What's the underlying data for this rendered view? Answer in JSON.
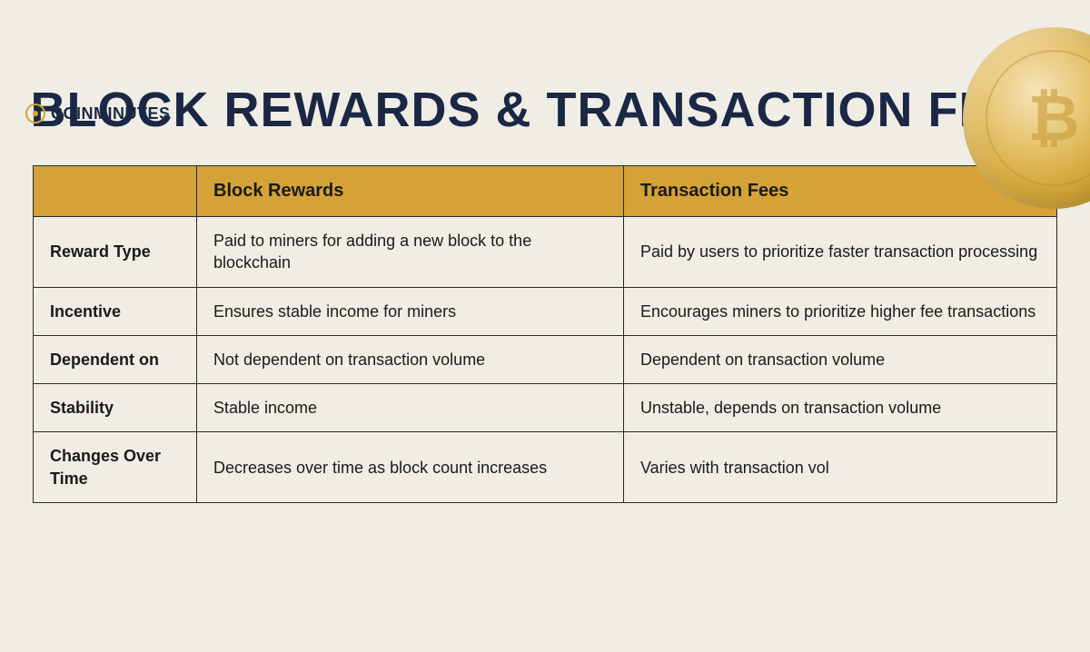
{
  "logo": {
    "prefix": "COIN",
    "suffix": "MINUTES"
  },
  "coin_symbol": "₿",
  "title": "BLOCK REWARDS & TRANSACTION FEES",
  "colors": {
    "background": "#f0ede5",
    "header_bg": "#d4a237",
    "title_color": "#1a2845",
    "border_color": "#2a2a2a",
    "logo_accent": "#d4a739"
  },
  "table": {
    "columns": [
      "",
      "Block Rewards",
      "Transaction Fees"
    ],
    "rows": [
      {
        "label": "Reward Type",
        "col1": "Paid to miners for adding a new block to the blockchain",
        "col2": "Paid by users to prioritize faster transaction processing"
      },
      {
        "label": "Incentive",
        "col1": "Ensures stable income for miners",
        "col2": "Encourages miners to prioritize higher fee transactions"
      },
      {
        "label": "Dependent on",
        "col1": "Not dependent on transaction volume",
        "col2": "Dependent on transaction volume"
      },
      {
        "label": "Stability",
        "col1": "Stable income",
        "col2": "Unstable, depends on transaction volume"
      },
      {
        "label": "Changes Over Time",
        "col1": "Decreases over time as block count increases",
        "col2": "Varies with transaction vol"
      }
    ]
  }
}
